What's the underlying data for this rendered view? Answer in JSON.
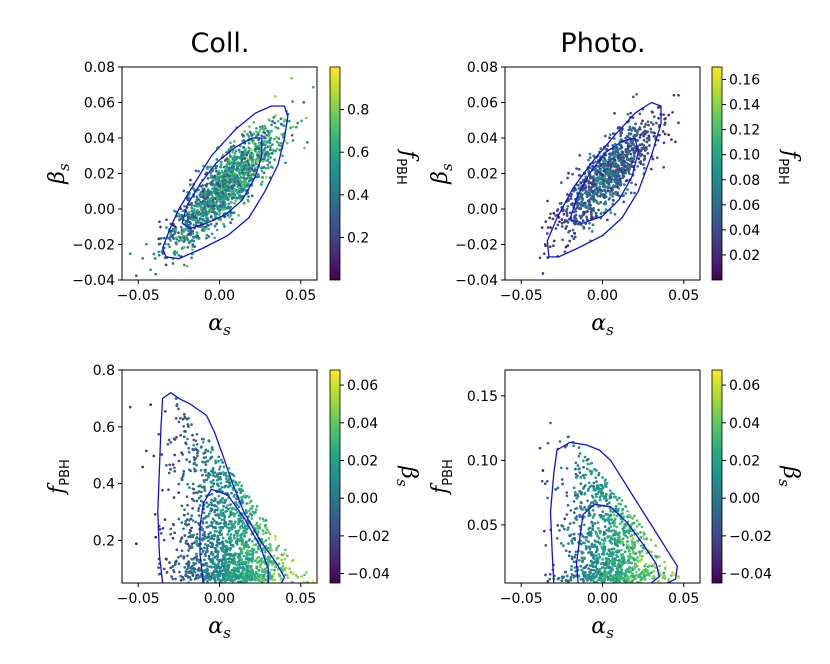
{
  "figure": {
    "column_titles": [
      "Coll.",
      "Photo."
    ]
  },
  "chart_data": [
    {
      "id": "coll-top",
      "type": "scatter",
      "title": "Coll.",
      "xlabel": "α_s",
      "ylabel": "β_s",
      "xlabel_main": "α",
      "xlabel_sub": "s",
      "ylabel_main": "β",
      "ylabel_sub": "s",
      "xlim": [
        -0.06,
        0.06
      ],
      "ylim": [
        -0.04,
        0.08
      ],
      "xticks": [
        -0.05,
        0.0,
        0.05
      ],
      "xtick_labels": [
        "−0.05",
        "0.00",
        "0.05"
      ],
      "yticks": [
        -0.04,
        -0.02,
        0.0,
        0.02,
        0.04,
        0.06,
        0.08
      ],
      "ytick_labels": [
        "−0.04",
        "−0.02",
        "0.00",
        "0.02",
        "0.04",
        "0.06",
        "0.08"
      ],
      "colorbar": {
        "label": "f_PBH",
        "label_main": "f",
        "label_sub": "PBH",
        "range": [
          0.0,
          1.0
        ],
        "ticks": [
          0.2,
          0.4,
          0.6,
          0.8
        ],
        "tick_labels": [
          "0.2",
          "0.4",
          "0.6",
          "0.8"
        ]
      },
      "scatter": {
        "n": 1500,
        "center": [
          0.004,
          0.013
        ],
        "sd": [
          0.017,
          0.017
        ],
        "rho": 0.86,
        "color_from": "f",
        "f_range": [
          0.0,
          1.0
        ],
        "color_mode": "hi",
        "seed": 11
      },
      "contours": [
        [
          [
            -0.035,
            -0.022
          ],
          [
            -0.03,
            -0.01
          ],
          [
            -0.025,
            0.0
          ],
          [
            -0.015,
            0.015
          ],
          [
            -0.005,
            0.03
          ],
          [
            0.01,
            0.045
          ],
          [
            0.022,
            0.054
          ],
          [
            0.032,
            0.058
          ],
          [
            0.04,
            0.058
          ],
          [
            0.042,
            0.052
          ],
          [
            0.04,
            0.04
          ],
          [
            0.036,
            0.025
          ],
          [
            0.028,
            0.01
          ],
          [
            0.018,
            -0.005
          ],
          [
            0.005,
            -0.015
          ],
          [
            -0.01,
            -0.022
          ],
          [
            -0.025,
            -0.028
          ],
          [
            -0.033,
            -0.027
          ],
          [
            -0.035,
            -0.022
          ]
        ],
        [
          [
            -0.023,
            -0.008
          ],
          [
            -0.02,
            0.002
          ],
          [
            -0.012,
            0.014
          ],
          [
            -0.002,
            0.026
          ],
          [
            0.01,
            0.035
          ],
          [
            0.02,
            0.04
          ],
          [
            0.026,
            0.04
          ],
          [
            0.026,
            0.03
          ],
          [
            0.022,
            0.018
          ],
          [
            0.014,
            0.005
          ],
          [
            0.004,
            -0.003
          ],
          [
            -0.008,
            -0.008
          ],
          [
            -0.018,
            -0.011
          ],
          [
            -0.023,
            -0.008
          ]
        ]
      ]
    },
    {
      "id": "photo-top",
      "type": "scatter",
      "title": "Photo.",
      "xlabel": "α_s",
      "ylabel": "β_s",
      "xlabel_main": "α",
      "xlabel_sub": "s",
      "ylabel_main": "β",
      "ylabel_sub": "s",
      "xlim": [
        -0.06,
        0.06
      ],
      "ylim": [
        -0.04,
        0.08
      ],
      "xticks": [
        -0.05,
        0.0,
        0.05
      ],
      "xtick_labels": [
        "−0.05",
        "0.00",
        "0.05"
      ],
      "yticks": [
        -0.04,
        -0.02,
        0.0,
        0.02,
        0.04,
        0.06,
        0.08
      ],
      "ytick_labels": [
        "−0.04",
        "−0.02",
        "0.00",
        "0.02",
        "0.04",
        "0.06",
        "0.08"
      ],
      "colorbar": {
        "label": "f_PBH",
        "label_main": "f",
        "label_sub": "PBH",
        "range": [
          0.0,
          0.17
        ],
        "ticks": [
          0.02,
          0.04,
          0.06,
          0.08,
          0.1,
          0.12,
          0.14,
          0.16
        ],
        "tick_labels": [
          "0.02",
          "0.04",
          "0.06",
          "0.08",
          "0.10",
          "0.12",
          "0.14",
          "0.16"
        ]
      },
      "scatter": {
        "n": 1050,
        "center": [
          0.002,
          0.018
        ],
        "sd": [
          0.015,
          0.016
        ],
        "rho": 0.82,
        "color_from": "f",
        "f_range": [
          0.0,
          0.17
        ],
        "color_mode": "mid",
        "seed": 23
      },
      "contours": [
        [
          [
            -0.033,
            -0.027
          ],
          [
            -0.034,
            -0.018
          ],
          [
            -0.028,
            -0.005
          ],
          [
            -0.018,
            0.012
          ],
          [
            -0.005,
            0.028
          ],
          [
            0.008,
            0.042
          ],
          [
            0.02,
            0.054
          ],
          [
            0.03,
            0.06
          ],
          [
            0.036,
            0.058
          ],
          [
            0.036,
            0.048
          ],
          [
            0.03,
            0.03
          ],
          [
            0.022,
            0.01
          ],
          [
            0.012,
            -0.005
          ],
          [
            0.0,
            -0.015
          ],
          [
            -0.015,
            -0.022
          ],
          [
            -0.027,
            -0.027
          ],
          [
            -0.033,
            -0.027
          ]
        ],
        [
          [
            -0.02,
            -0.006
          ],
          [
            -0.016,
            0.006
          ],
          [
            -0.008,
            0.02
          ],
          [
            0.002,
            0.032
          ],
          [
            0.012,
            0.038
          ],
          [
            0.02,
            0.04
          ],
          [
            0.022,
            0.032
          ],
          [
            0.018,
            0.018
          ],
          [
            0.01,
            0.005
          ],
          [
            0.0,
            -0.004
          ],
          [
            -0.012,
            -0.008
          ],
          [
            -0.02,
            -0.006
          ]
        ]
      ]
    },
    {
      "id": "coll-bottom",
      "type": "scatter",
      "xlabel": "α_s",
      "ylabel": "f_PBH",
      "xlabel_main": "α",
      "xlabel_sub": "s",
      "ylabel_main": "f",
      "ylabel_sub": "PBH",
      "xlim": [
        -0.06,
        0.06
      ],
      "ylim": [
        0.05,
        0.8
      ],
      "xticks": [
        -0.05,
        0.0,
        0.05
      ],
      "xtick_labels": [
        "−0.05",
        "0.00",
        "0.05"
      ],
      "yticks": [
        0.2,
        0.4,
        0.6,
        0.8
      ],
      "ytick_labels": [
        "0.2",
        "0.4",
        "0.6",
        "0.8"
      ],
      "colorbar": {
        "label": "β_s",
        "label_main": "β",
        "label_sub": "s",
        "range": [
          -0.045,
          0.068
        ],
        "ticks": [
          -0.04,
          -0.02,
          0.0,
          0.02,
          0.04,
          0.06
        ],
        "tick_labels": [
          "−0.04",
          "−0.02",
          "0.00",
          "0.02",
          "0.04",
          "0.06"
        ]
      },
      "scatter": {
        "n": 1500,
        "center": [
          0.004,
          0.013
        ],
        "sd": [
          0.017,
          0.017
        ],
        "rho": 0.86,
        "color_from": "beta",
        "f_range": [
          0.05,
          0.78
        ],
        "f_shape": "decay",
        "seed": 11
      },
      "contours": [
        [
          [
            -0.035,
            0.05
          ],
          [
            -0.037,
            0.15
          ],
          [
            -0.038,
            0.3
          ],
          [
            -0.037,
            0.45
          ],
          [
            -0.036,
            0.6
          ],
          [
            -0.035,
            0.7
          ],
          [
            -0.03,
            0.72
          ],
          [
            -0.025,
            0.7
          ],
          [
            -0.018,
            0.68
          ],
          [
            -0.008,
            0.64
          ],
          [
            -0.003,
            0.58
          ],
          [
            0.002,
            0.5
          ],
          [
            0.008,
            0.4
          ],
          [
            0.015,
            0.3
          ],
          [
            0.025,
            0.2
          ],
          [
            0.035,
            0.12
          ],
          [
            0.04,
            0.07
          ],
          [
            0.038,
            0.05
          ]
        ],
        [
          [
            -0.01,
            0.05
          ],
          [
            -0.012,
            0.15
          ],
          [
            -0.012,
            0.25
          ],
          [
            -0.01,
            0.33
          ],
          [
            -0.005,
            0.38
          ],
          [
            0.005,
            0.36
          ],
          [
            0.015,
            0.28
          ],
          [
            0.025,
            0.18
          ],
          [
            0.03,
            0.1
          ],
          [
            0.03,
            0.05
          ]
        ]
      ]
    },
    {
      "id": "photo-bottom",
      "type": "scatter",
      "xlabel": "α_s",
      "ylabel": "f_PBH",
      "xlabel_main": "α",
      "xlabel_sub": "s",
      "ylabel_main": "f",
      "ylabel_sub": "PBH",
      "xlim": [
        -0.06,
        0.06
      ],
      "ylim": [
        0.005,
        0.17
      ],
      "xticks": [
        -0.05,
        0.0,
        0.05
      ],
      "xtick_labels": [
        "−0.05",
        "0.00",
        "0.05"
      ],
      "yticks": [
        0.05,
        0.1,
        0.15
      ],
      "ytick_labels": [
        "0.05",
        "0.10",
        "0.15"
      ],
      "colorbar": {
        "label": "β_s",
        "label_main": "β",
        "label_sub": "s",
        "range": [
          -0.045,
          0.068
        ],
        "ticks": [
          -0.04,
          -0.02,
          0.0,
          0.02,
          0.04,
          0.06
        ],
        "tick_labels": [
          "−0.04",
          "−0.02",
          "0.00",
          "0.02",
          "0.04",
          "0.06"
        ]
      },
      "scatter": {
        "n": 1050,
        "center": [
          0.002,
          0.018
        ],
        "sd": [
          0.015,
          0.016
        ],
        "rho": 0.82,
        "color_from": "beta",
        "f_range": [
          0.005,
          0.145
        ],
        "f_shape": "decay",
        "seed": 23
      },
      "contours": [
        [
          [
            -0.03,
            0.005
          ],
          [
            -0.031,
            0.03
          ],
          [
            -0.032,
            0.06
          ],
          [
            -0.03,
            0.09
          ],
          [
            -0.028,
            0.108
          ],
          [
            -0.02,
            0.114
          ],
          [
            -0.01,
            0.112
          ],
          [
            -0.002,
            0.108
          ],
          [
            0.005,
            0.1
          ],
          [
            0.01,
            0.09
          ],
          [
            0.02,
            0.07
          ],
          [
            0.03,
            0.05
          ],
          [
            0.04,
            0.03
          ],
          [
            0.046,
            0.018
          ],
          [
            0.045,
            0.008
          ],
          [
            0.04,
            0.005
          ]
        ],
        [
          [
            -0.015,
            0.005
          ],
          [
            -0.016,
            0.02
          ],
          [
            -0.014,
            0.04
          ],
          [
            -0.012,
            0.058
          ],
          [
            -0.005,
            0.066
          ],
          [
            0.005,
            0.064
          ],
          [
            0.015,
            0.052
          ],
          [
            0.025,
            0.035
          ],
          [
            0.033,
            0.02
          ],
          [
            0.035,
            0.01
          ],
          [
            0.03,
            0.005
          ]
        ]
      ]
    }
  ]
}
